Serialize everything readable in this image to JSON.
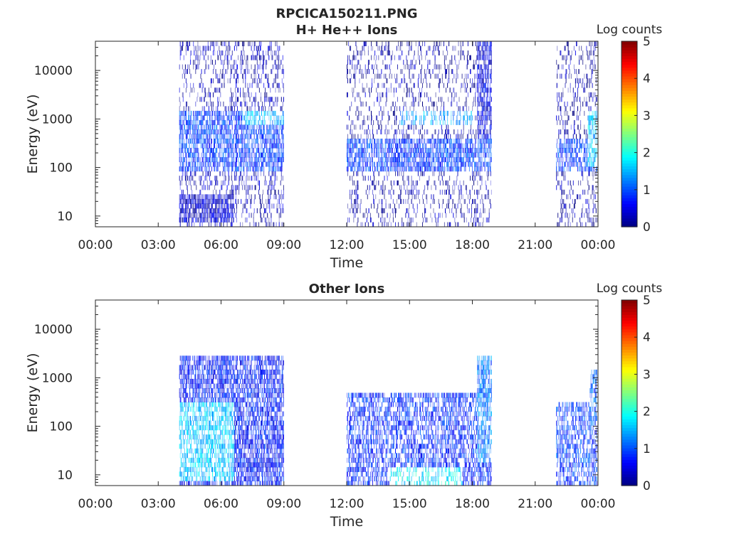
{
  "figure": {
    "title_line1": "RPCICA150211.PNG"
  },
  "chart_data": [
    {
      "type": "heatmap",
      "title": "H+ He++ Ions",
      "xlabel": "Time",
      "ylabel": "Energy (eV)",
      "x_ticks": [
        "00:00",
        "03:00",
        "06:00",
        "09:00",
        "12:00",
        "15:00",
        "18:00",
        "21:00",
        "00:00"
      ],
      "x_range_hours": [
        0,
        24
      ],
      "y_scale": "log",
      "y_ticks": [
        10,
        100,
        1000,
        10000
      ],
      "y_tick_labels": [
        "10",
        "100",
        "1000",
        "10000"
      ],
      "y_range_eV": [
        6,
        40000
      ],
      "colorbar": {
        "label": "Log counts",
        "ticks": [
          "0",
          "1",
          "2",
          "3",
          "4",
          "5"
        ],
        "range": [
          0,
          5
        ],
        "colormap": "jet"
      },
      "data_intervals_hours": [
        [
          4.0,
          9.0
        ],
        [
          12.0,
          18.9
        ],
        [
          22.0,
          23.95
        ]
      ],
      "bands": [
        {
          "t": [
            4.0,
            9.0
          ],
          "e": [
            6,
            40000
          ],
          "level": 0.25,
          "density": 0.25
        },
        {
          "t": [
            4.0,
            9.0
          ],
          "e": [
            80,
            1500
          ],
          "level": 0.9,
          "density": 0.7
        },
        {
          "t": [
            4.0,
            6.6
          ],
          "e": [
            8,
            30
          ],
          "level": 0.4,
          "density": 0.8
        },
        {
          "t": [
            7.0,
            9.0
          ],
          "e": [
            800,
            1500
          ],
          "level": 1.5,
          "density": 0.5
        },
        {
          "t": [
            12.0,
            18.9
          ],
          "e": [
            6,
            40000
          ],
          "level": 0.15,
          "density": 0.2
        },
        {
          "t": [
            12.0,
            18.9
          ],
          "e": [
            80,
            400
          ],
          "level": 0.9,
          "density": 0.7
        },
        {
          "t": [
            14.5,
            18.0
          ],
          "e": [
            700,
            1500
          ],
          "level": 1.4,
          "density": 0.35
        },
        {
          "t": [
            18.2,
            18.9
          ],
          "e": [
            80,
            40000
          ],
          "level": 0.5,
          "density": 0.7
        },
        {
          "t": [
            22.0,
            23.95
          ],
          "e": [
            6,
            40000
          ],
          "level": 0.15,
          "density": 0.2
        },
        {
          "t": [
            22.0,
            23.95
          ],
          "e": [
            80,
            400
          ],
          "level": 0.9,
          "density": 0.6
        },
        {
          "t": [
            23.5,
            23.95
          ],
          "e": [
            100,
            1500
          ],
          "level": 1.6,
          "density": 0.6
        }
      ]
    },
    {
      "type": "heatmap",
      "title": "Other Ions",
      "xlabel": "Time",
      "ylabel": "Energy (eV)",
      "x_ticks": [
        "00:00",
        "03:00",
        "06:00",
        "09:00",
        "12:00",
        "15:00",
        "18:00",
        "21:00",
        "00:00"
      ],
      "x_range_hours": [
        0,
        24
      ],
      "y_scale": "log",
      "y_ticks": [
        10,
        100,
        1000,
        10000
      ],
      "y_tick_labels": [
        "10",
        "100",
        "1000",
        "10000"
      ],
      "y_range_eV": [
        6,
        40000
      ],
      "colorbar": {
        "label": "Log counts",
        "ticks": [
          "0",
          "1",
          "2",
          "3",
          "4",
          "5"
        ],
        "range": [
          0,
          5
        ],
        "colormap": "jet"
      },
      "data_intervals_hours": [
        [
          4.0,
          9.0
        ],
        [
          12.0,
          18.9
        ],
        [
          22.0,
          23.95
        ]
      ],
      "bands": [
        {
          "t": [
            4.0,
            9.0
          ],
          "e": [
            6,
            3000
          ],
          "level": 0.7,
          "density": 0.7
        },
        {
          "t": [
            4.0,
            6.6
          ],
          "e": [
            8,
            300
          ],
          "level": 1.6,
          "density": 0.6
        },
        {
          "t": [
            12.0,
            18.9
          ],
          "e": [
            6,
            500
          ],
          "level": 0.8,
          "density": 0.55
        },
        {
          "t": [
            14.0,
            17.5
          ],
          "e": [
            6,
            15
          ],
          "level": 1.8,
          "density": 0.4
        },
        {
          "t": [
            18.2,
            18.9
          ],
          "e": [
            20,
            3000
          ],
          "level": 1.2,
          "density": 0.7
        },
        {
          "t": [
            22.0,
            23.95
          ],
          "e": [
            6,
            300
          ],
          "level": 0.9,
          "density": 0.5
        },
        {
          "t": [
            23.6,
            23.95
          ],
          "e": [
            100,
            1500
          ],
          "level": 1.1,
          "density": 0.6
        }
      ]
    }
  ]
}
